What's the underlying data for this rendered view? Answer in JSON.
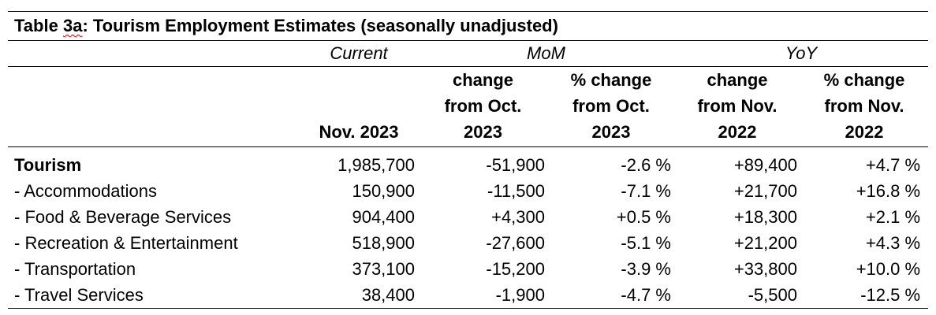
{
  "table": {
    "title_prefix": "Table ",
    "title_number": "3a",
    "title_rest": ": Tourism Employment Estimates (seasonally unadjusted)",
    "groups": {
      "current": "Current",
      "mom": "MoM",
      "yoy": "YoY"
    },
    "headers": {
      "current_line1": "Nov. 2023",
      "mom_change_l1": "change",
      "mom_change_l2": "from Oct.",
      "mom_change_l3": "2023",
      "mom_pct_l1": "% change",
      "mom_pct_l2": "from Oct.",
      "mom_pct_l3": "2023",
      "yoy_change_l1": "change",
      "yoy_change_l2": "from Nov.",
      "yoy_change_l3": "2022",
      "yoy_pct_l1": "% change",
      "yoy_pct_l2": "from Nov.",
      "yoy_pct_l3": "2022"
    },
    "rows": [
      {
        "label": "Tourism",
        "current": "1,985,700",
        "mom_change": "-51,900",
        "mom_pct": "-2.6 %",
        "yoy_change": "+89,400",
        "yoy_pct": "+4.7 %"
      },
      {
        "label": "- Accommodations",
        "current": "150,900",
        "mom_change": "-11,500",
        "mom_pct": "-7.1 %",
        "yoy_change": "+21,700",
        "yoy_pct": "+16.8 %"
      },
      {
        "label": "- Food & Beverage Services",
        "current": "904,400",
        "mom_change": "+4,300",
        "mom_pct": "+0.5 %",
        "yoy_change": "+18,300",
        "yoy_pct": "+2.1 %"
      },
      {
        "label": "- Recreation & Entertainment",
        "current": "518,900",
        "mom_change": "-27,600",
        "mom_pct": "-5.1 %",
        "yoy_change": "+21,200",
        "yoy_pct": "+4.3 %"
      },
      {
        "label": "- Transportation",
        "current": "373,100",
        "mom_change": "-15,200",
        "mom_pct": "-3.9 %",
        "yoy_change": "+33,800",
        "yoy_pct": "+10.0 %"
      },
      {
        "label": "- Travel Services",
        "current": "38,400",
        "mom_change": "-1,900",
        "mom_pct": "-4.7 %",
        "yoy_change": "-5,500",
        "yoy_pct": "-12.5 %"
      }
    ]
  }
}
